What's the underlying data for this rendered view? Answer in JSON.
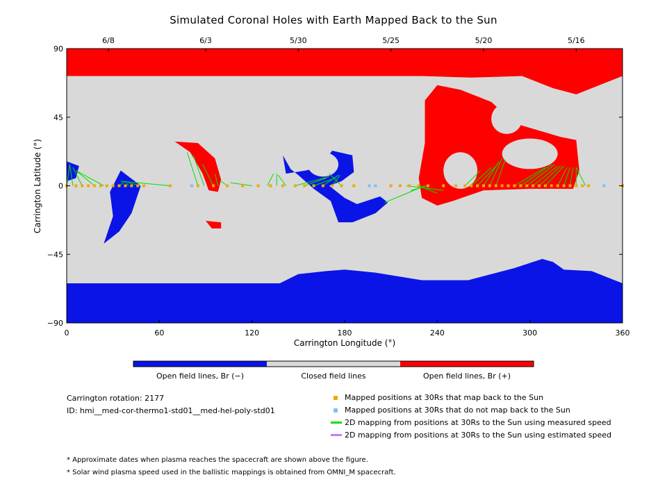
{
  "chart_data": {
    "type": "heatmap",
    "title": "Simulated Coronal Holes with Earth Mapped Back to the Sun",
    "xlabel": "Carrington Longitude (°)",
    "ylabel": "Carrington Latitude (°)",
    "xlim": [
      0,
      360
    ],
    "ylim": [
      -90,
      90
    ],
    "x_ticks": [
      0,
      60,
      120,
      180,
      240,
      300,
      360
    ],
    "y_ticks": [
      90,
      45,
      0,
      -45,
      -90
    ],
    "y_tick_labels": [
      "90",
      "45",
      "0",
      "−45",
      "−90"
    ],
    "top_axis": {
      "label_note": "dates",
      "ticks": [
        {
          "lon": 27,
          "label": "6/8"
        },
        {
          "lon": 90,
          "label": "6/3"
        },
        {
          "lon": 150,
          "label": "5/30"
        },
        {
          "lon": 210,
          "label": "5/25"
        },
        {
          "lon": 270,
          "label": "5/20"
        },
        {
          "lon": 330,
          "label": "5/16"
        }
      ]
    },
    "colorbar": [
      {
        "label": "Open field lines, Br (−)",
        "color": "#0a14e6"
      },
      {
        "label": "Closed field lines",
        "color": "#d9d9d9"
      },
      {
        "label": "Open field lines, Br (+)",
        "color": "#ff0000"
      }
    ],
    "colors": {
      "negative": "#0a14e6",
      "closed": "#d9d9d9",
      "positive": "#ff0000",
      "mapped_yes": "#f2a800",
      "mapped_no": "#7fbfff",
      "measured_line": "#00e000",
      "estimated_line": "#c080f0"
    },
    "regions": {
      "north_positive": [
        [
          0,
          90
        ],
        [
          360,
          90
        ],
        [
          360,
          72
        ],
        [
          0,
          72
        ]
      ],
      "south_negative": [
        [
          0,
          -90
        ],
        [
          360,
          -90
        ],
        [
          360,
          -64
        ],
        [
          0,
          -64
        ]
      ],
      "positive_cap_overlay": [
        [
          0,
          72
        ],
        [
          100,
          72
        ],
        [
          118,
          68
        ],
        [
          150,
          66
        ],
        [
          170,
          77
        ],
        [
          200,
          75
        ],
        [
          230,
          72
        ],
        [
          262,
          71
        ],
        [
          295,
          72
        ],
        [
          315,
          64
        ],
        [
          330,
          60
        ],
        [
          345,
          66
        ],
        [
          360,
          72
        ],
        [
          360,
          90
        ],
        [
          0,
          90
        ]
      ],
      "big_gray_bulge": [
        [
          98,
          72
        ],
        [
          112,
          46
        ],
        [
          128,
          43
        ],
        [
          150,
          54
        ],
        [
          170,
          68
        ],
        [
          176,
          72
        ]
      ],
      "negative_cap_overlay": [
        [
          0,
          -64
        ],
        [
          40,
          -66
        ],
        [
          90,
          -69
        ],
        [
          130,
          -68
        ],
        [
          150,
          -58
        ],
        [
          168,
          -56
        ],
        [
          180,
          -55
        ],
        [
          200,
          -57
        ],
        [
          230,
          -62
        ],
        [
          260,
          -62
        ],
        [
          290,
          -54
        ],
        [
          308,
          -48
        ],
        [
          315,
          -50
        ],
        [
          322,
          -55
        ],
        [
          340,
          -56
        ],
        [
          360,
          -64
        ],
        [
          360,
          -90
        ],
        [
          0,
          -90
        ]
      ],
      "positive_blob": [
        [
          232,
          56
        ],
        [
          240,
          66
        ],
        [
          255,
          63
        ],
        [
          275,
          55
        ],
        [
          290,
          41
        ],
        [
          300,
          38
        ],
        [
          320,
          32
        ],
        [
          330,
          30
        ],
        [
          332,
          10
        ],
        [
          328,
          -2
        ],
        [
          300,
          -2
        ],
        [
          270,
          -3
        ],
        [
          250,
          -10
        ],
        [
          240,
          -13
        ],
        [
          230,
          -8
        ],
        [
          228,
          5
        ],
        [
          232,
          28
        ]
      ],
      "positive_holes": [
        {
          "center": [
            255,
            10
          ],
          "rx": 11,
          "ry": 12
        },
        {
          "center": [
            300,
            21
          ],
          "rx": 18,
          "ry": 10
        },
        {
          "center": [
            285,
            44
          ],
          "rx": 10,
          "ry": 10
        }
      ],
      "positive_streak": [
        [
          70,
          29
        ],
        [
          85,
          28
        ],
        [
          96,
          18
        ],
        [
          100,
          4
        ],
        [
          98,
          -4
        ],
        [
          92,
          -3
        ],
        [
          88,
          8
        ],
        [
          80,
          22
        ]
      ],
      "positive_small": [
        [
          90,
          -23
        ],
        [
          100,
          -24
        ],
        [
          100,
          -28
        ],
        [
          94,
          -28
        ]
      ],
      "neg_south_small": [
        [
          35,
          10
        ],
        [
          48,
          0
        ],
        [
          42,
          -18
        ],
        [
          34,
          -30
        ],
        [
          24,
          -38
        ],
        [
          30,
          -20
        ],
        [
          28,
          -4
        ]
      ],
      "neg_west_edge": [
        [
          0,
          16
        ],
        [
          8,
          13
        ],
        [
          6,
          5
        ],
        [
          0,
          3
        ]
      ],
      "neg_c_shape": [
        [
          140,
          20
        ],
        [
          142,
          8
        ],
        [
          155,
          10
        ],
        [
          163,
          12
        ],
        [
          172,
          23
        ],
        [
          185,
          20
        ],
        [
          186,
          9
        ],
        [
          178,
          3
        ],
        [
          170,
          0
        ],
        [
          180,
          -8
        ],
        [
          188,
          -12
        ],
        [
          203,
          -7
        ],
        [
          208,
          -11
        ],
        [
          200,
          -18
        ],
        [
          185,
          -24
        ],
        [
          176,
          -24
        ],
        [
          171,
          -10
        ],
        [
          160,
          -2
        ],
        [
          150,
          7
        ],
        [
          145,
          11
        ]
      ],
      "neg_c_hole": {
        "center": [
          166,
          14
        ],
        "rx": 10,
        "ry": 8
      }
    },
    "series": [
      {
        "name": "Mapped positions at 30Rs that map back to the Sun",
        "points_lon": [
          0,
          6,
          10,
          14,
          18,
          22,
          26,
          30,
          34,
          38,
          42,
          46,
          50,
          67,
          85,
          95,
          104,
          114,
          124,
          132,
          140,
          148,
          154,
          160,
          166,
          172,
          178,
          186,
          200,
          210,
          216,
          222,
          228,
          234,
          244,
          252,
          258,
          262,
          266,
          270,
          274,
          278,
          282,
          286,
          290,
          294,
          298,
          302,
          306,
          310,
          314,
          318,
          322,
          326,
          330,
          334,
          338,
          360
        ],
        "lat": 0
      },
      {
        "name": "Mapped positions at 30Rs that do not map back to the Sun",
        "points_lon": [
          81,
          196,
          200,
          348
        ],
        "lat": 0
      },
      {
        "name": "2D mapping from positions at 30Rs to the Sun using measured speed",
        "segments": [
          [
            [
              0,
              0
            ],
            [
              2,
              14
            ]
          ],
          [
            [
              4,
              0
            ],
            [
              2,
              14
            ]
          ],
          [
            [
              10,
              0
            ],
            [
              4,
              12
            ]
          ],
          [
            [
              18,
              0
            ],
            [
              6,
              10
            ]
          ],
          [
            [
              24,
              0
            ],
            [
              6,
              10
            ]
          ],
          [
            [
              34,
              0
            ],
            [
              38,
              3
            ]
          ],
          [
            [
              40,
              0
            ],
            [
              38,
              3
            ]
          ],
          [
            [
              48,
              0
            ],
            [
              40,
              2
            ]
          ],
          [
            [
              67,
              0
            ],
            [
              35,
              3
            ]
          ],
          [
            [
              85,
              0
            ],
            [
              78,
              22
            ]
          ],
          [
            [
              89,
              0
            ],
            [
              82,
              20
            ]
          ],
          [
            [
              95,
              0
            ],
            [
              88,
              14
            ]
          ],
          [
            [
              98,
              0
            ],
            [
              96,
              8
            ]
          ],
          [
            [
              104,
              0
            ],
            [
              100,
              3
            ]
          ],
          [
            [
              120,
              0
            ],
            [
              106,
              2
            ]
          ],
          [
            [
              130,
              0
            ],
            [
              134,
              8
            ]
          ],
          [
            [
              136,
              0
            ],
            [
              136,
              8
            ]
          ],
          [
            [
              142,
              0
            ],
            [
              137,
              7
            ]
          ],
          [
            [
              148,
              0
            ],
            [
              170,
              6
            ]
          ],
          [
            [
              154,
              0
            ],
            [
              168,
              5
            ]
          ],
          [
            [
              160,
              0
            ],
            [
              174,
              5
            ]
          ],
          [
            [
              166,
              0
            ],
            [
              176,
              7
            ]
          ],
          [
            [
              172,
              0
            ],
            [
              177,
              7
            ]
          ],
          [
            [
              178,
              0
            ],
            [
              170,
              8
            ]
          ],
          [
            [
              220,
              0
            ],
            [
              244,
              -3
            ]
          ],
          [
            [
              228,
              0
            ],
            [
              240,
              -5
            ]
          ],
          [
            [
              232,
              0
            ],
            [
              206,
              -11
            ]
          ],
          [
            [
              234,
              0
            ],
            [
              223,
              -3
            ]
          ],
          [
            [
              258,
              0
            ],
            [
              268,
              10
            ]
          ],
          [
            [
              262,
              0
            ],
            [
              275,
              12
            ]
          ],
          [
            [
              266,
              0
            ],
            [
              279,
              14
            ]
          ],
          [
            [
              270,
              0
            ],
            [
              280,
              16
            ]
          ],
          [
            [
              274,
              0
            ],
            [
              282,
              18
            ]
          ],
          [
            [
              278,
              0
            ],
            [
              284,
              17
            ]
          ],
          [
            [
              290,
              0
            ],
            [
              310,
              12
            ]
          ],
          [
            [
              294,
              0
            ],
            [
              314,
              14
            ]
          ],
          [
            [
              298,
              0
            ],
            [
              316,
              14
            ]
          ],
          [
            [
              302,
              0
            ],
            [
              318,
              13
            ]
          ],
          [
            [
              306,
              0
            ],
            [
              320,
              13
            ]
          ],
          [
            [
              310,
              0
            ],
            [
              322,
              13
            ]
          ],
          [
            [
              318,
              0
            ],
            [
              324,
              12
            ]
          ],
          [
            [
              322,
              0
            ],
            [
              326,
              12
            ]
          ],
          [
            [
              326,
              0
            ],
            [
              328,
              12
            ]
          ],
          [
            [
              330,
              0
            ],
            [
              330,
              12
            ]
          ],
          [
            [
              336,
              0
            ],
            [
              330,
              12
            ]
          ],
          [
            [
              360,
              0
            ],
            [
              362,
              8
            ]
          ]
        ]
      }
    ]
  },
  "info": {
    "rotation": "Carrington rotation: 2177",
    "id": "ID: hmi__med-cor-thermo1-std01__med-hel-poly-std01"
  },
  "legend": [
    {
      "label": "Mapped positions at 30Rs that map back to the Sun",
      "kind": "square",
      "color": "#f2a800"
    },
    {
      "label": "Mapped positions at 30Rs that do not map back to the Sun",
      "kind": "square",
      "color": "#7fbfff"
    },
    {
      "label": "2D mapping from positions at 30Rs to the Sun using measured speed",
      "kind": "line",
      "color": "#00e000"
    },
    {
      "label": "2D mapping from positions at 30Rs to the Sun using estimated speed",
      "kind": "line",
      "color": "#c080f0"
    }
  ],
  "footnotes": [
    "* Approximate dates when plasma reaches the spacecraft are shown above the figure.",
    "* Solar wind plasma speed used in the ballistic mappings is obtained from OMNI_M spacecraft."
  ]
}
